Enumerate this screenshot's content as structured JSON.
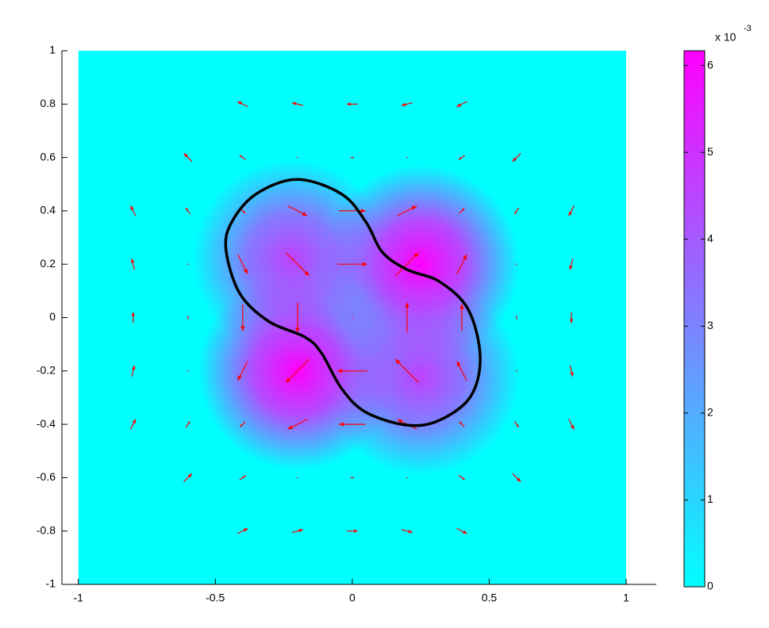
{
  "chart_data": {
    "type": "quiver",
    "xlim": [
      -1.06,
      1.11
    ],
    "ylim": [
      -1,
      1
    ],
    "xticks": [
      -1,
      -0.5,
      0,
      0.5,
      1
    ],
    "yticks": [
      -1,
      -0.8,
      -0.6,
      -0.4,
      -0.2,
      0,
      0.2,
      0.4,
      0.6,
      0.8,
      1
    ],
    "extent": {
      "x": [
        -1,
        1
      ],
      "y": [
        -1,
        1
      ]
    },
    "colormap": [
      "#00ffff",
      "#ff00ff"
    ],
    "clim": [
      0,
      6.17
    ],
    "cticks": [
      0,
      1,
      2,
      3,
      4,
      5,
      6
    ],
    "colorbar_label": "x 10",
    "colorbar_exponent": "-3",
    "peaks": [
      [
        0.25,
        0.2,
        6.2
      ],
      [
        -0.2,
        -0.2,
        6.2
      ],
      [
        -0.22,
        0.22,
        4.6
      ],
      [
        0.25,
        -0.22,
        4.6
      ]
    ],
    "arrow_color": "#ff0000",
    "arrows": [
      [
        -0.4,
        0.8,
        -0.66,
        0.33
      ],
      [
        -0.2,
        0.8,
        -0.7,
        0.17
      ],
      [
        0,
        0.8,
        -0.68,
        0
      ],
      [
        0.2,
        0.8,
        -0.7,
        -0.17
      ],
      [
        0.4,
        0.8,
        -0.66,
        -0.33
      ],
      [
        -0.6,
        0.6,
        -0.52,
        0.52
      ],
      [
        -0.4,
        0.6,
        -0.38,
        0.26
      ],
      [
        -0.2,
        0.6,
        0,
        0
      ],
      [
        0,
        0.6,
        0.22,
        0
      ],
      [
        0.2,
        0.6,
        0,
        0
      ],
      [
        0.4,
        0.6,
        -0.38,
        -0.26
      ],
      [
        0.6,
        0.6,
        -0.52,
        -0.52
      ],
      [
        -0.8,
        0.4,
        -0.33,
        0.66
      ],
      [
        -0.6,
        0.4,
        -0.26,
        0.38
      ],
      [
        -0.4,
        0.4,
        0.33,
        -0.33
      ],
      [
        -0.2,
        0.4,
        1.23,
        -0.62
      ],
      [
        0,
        0.4,
        1.69,
        0
      ],
      [
        0.2,
        0.4,
        1.23,
        0.62
      ],
      [
        0.4,
        0.4,
        0.33,
        0.33
      ],
      [
        0.6,
        0.4,
        -0.26,
        -0.38
      ],
      [
        0.8,
        0.4,
        -0.33,
        -0.66
      ],
      [
        -0.8,
        0.2,
        -0.17,
        0.7
      ],
      [
        -0.6,
        0.2,
        0,
        0
      ],
      [
        -0.4,
        0.2,
        0.62,
        -1.23
      ],
      [
        -0.2,
        0.2,
        1.47,
        -1.47
      ],
      [
        0,
        0.2,
        1.89,
        0
      ],
      [
        0.2,
        0.2,
        1.47,
        1.47
      ],
      [
        0.4,
        0.2,
        0.62,
        1.23
      ],
      [
        0.6,
        0.2,
        0,
        0
      ],
      [
        0.8,
        0.2,
        -0.17,
        -0.7
      ],
      [
        -0.8,
        0,
        0,
        0.68
      ],
      [
        -0.6,
        0,
        0,
        -0.22
      ],
      [
        -0.4,
        0,
        0,
        -1.69
      ],
      [
        -0.2,
        0,
        0,
        -1.89
      ],
      [
        0,
        0,
        0,
        0
      ],
      [
        0.2,
        0,
        0,
        1.89
      ],
      [
        0.4,
        0,
        0,
        1.69
      ],
      [
        0.6,
        0,
        0,
        0.22
      ],
      [
        0.8,
        0,
        0,
        -0.68
      ],
      [
        -0.8,
        -0.2,
        0.17,
        0.7
      ],
      [
        -0.6,
        -0.2,
        0,
        0
      ],
      [
        -0.4,
        -0.2,
        -0.62,
        -1.23
      ],
      [
        -0.2,
        -0.2,
        -1.47,
        -1.47
      ],
      [
        0,
        -0.2,
        -1.89,
        0
      ],
      [
        0.2,
        -0.2,
        -1.47,
        1.47
      ],
      [
        0.4,
        -0.2,
        -0.62,
        1.23
      ],
      [
        0.6,
        -0.2,
        0,
        0
      ],
      [
        0.8,
        -0.2,
        0.17,
        -0.7
      ],
      [
        -0.8,
        -0.4,
        0.33,
        0.66
      ],
      [
        -0.6,
        -0.4,
        0.26,
        0.38
      ],
      [
        -0.4,
        -0.4,
        -0.33,
        -0.33
      ],
      [
        -0.2,
        -0.4,
        -1.23,
        -0.62
      ],
      [
        0,
        -0.4,
        -1.69,
        0
      ],
      [
        0.2,
        -0.4,
        -1.23,
        0.62
      ],
      [
        0.4,
        -0.4,
        -0.33,
        0.33
      ],
      [
        0.6,
        -0.4,
        0.26,
        -0.38
      ],
      [
        0.8,
        -0.4,
        0.33,
        -0.66
      ],
      [
        -0.6,
        -0.6,
        0.52,
        0.52
      ],
      [
        -0.4,
        -0.6,
        0.38,
        0.26
      ],
      [
        -0.2,
        -0.6,
        0,
        0
      ],
      [
        0,
        -0.6,
        -0.22,
        0
      ],
      [
        0.2,
        -0.6,
        0,
        0
      ],
      [
        0.4,
        -0.6,
        0.38,
        -0.26
      ],
      [
        0.6,
        -0.6,
        0.52,
        -0.52
      ],
      [
        -0.4,
        -0.8,
        0.66,
        0.33
      ],
      [
        -0.2,
        -0.8,
        0.7,
        0.17
      ],
      [
        0,
        -0.8,
        0.68,
        0
      ],
      [
        0.2,
        -0.8,
        0.7,
        -0.17
      ],
      [
        0.4,
        -0.8,
        0.66,
        -0.33
      ]
    ],
    "contour": {
      "x": [
        -0.202,
        -0.039,
        0.05,
        0.11,
        0.2,
        0.318,
        0.423,
        0.467,
        0.432,
        0.318,
        0.2,
        0.05,
        -0.039,
        -0.113,
        -0.173,
        -0.307,
        -0.411,
        -0.461,
        -0.44,
        -0.351
      ],
      "y": [
        0.518,
        0.463,
        0.358,
        0.245,
        0.18,
        0.135,
        0.031,
        -0.147,
        -0.296,
        -0.385,
        -0.403,
        -0.355,
        -0.266,
        -0.132,
        -0.073,
        -0.013,
        0.091,
        0.254,
        0.358,
        0.463
      ],
      "color": "#000000"
    }
  }
}
